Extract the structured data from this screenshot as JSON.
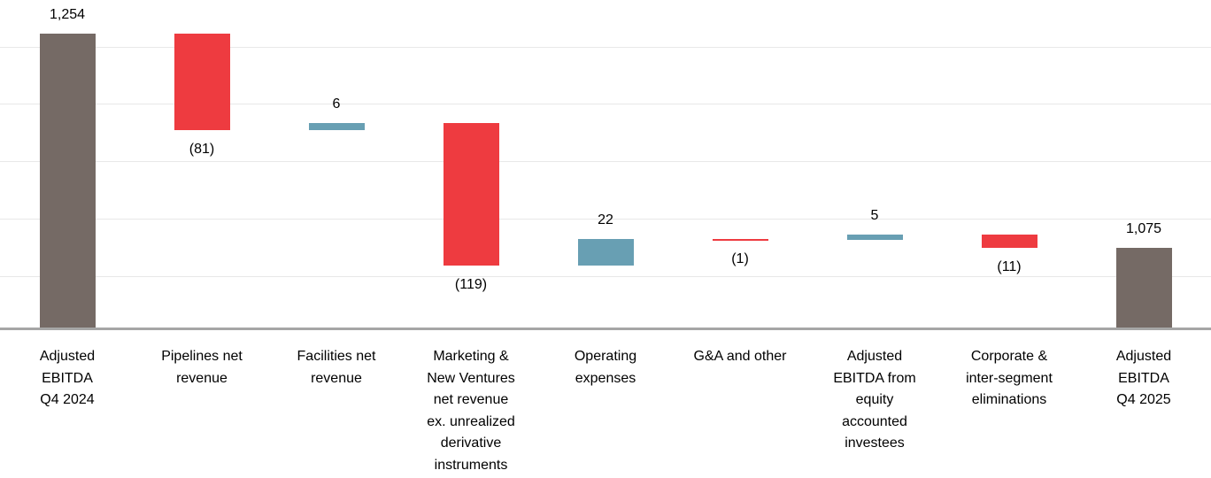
{
  "chart_data": {
    "type": "waterfall",
    "title": "",
    "legend": "none",
    "colors": {
      "total": "#756A65",
      "increase": "#689FB3",
      "decrease": "#EE3B40"
    },
    "axis": {
      "y_labels_visible": false,
      "y_truncated": true,
      "approx_y_range": [
        1008,
        1283
      ],
      "gridline_count": 5,
      "gridline_color": "#e8e8e8",
      "baseline_color": "#a6a6a6"
    },
    "steps": [
      {
        "id": "adjusted-ebitda-q4-2024",
        "kind": "total",
        "value": 1254,
        "display": "1,254",
        "label": "Adjusted EBITDA Q4 2024",
        "label_lines": [
          "Adjusted",
          "EBITDA",
          "Q4 2024"
        ]
      },
      {
        "id": "pipelines-net-revenue",
        "kind": "decrease",
        "value": -81,
        "display": "(81)",
        "label": "Pipelines net revenue",
        "label_lines": [
          "Pipelines net",
          "revenue"
        ]
      },
      {
        "id": "facilities-net-revenue",
        "kind": "increase",
        "value": 6,
        "display": "6",
        "label": "Facilities net revenue",
        "label_lines": [
          "Facilities net",
          "revenue"
        ]
      },
      {
        "id": "marketing-new-ventures-net-revenue",
        "kind": "decrease",
        "value": -119,
        "display": "(119)",
        "label": "Marketing & New Ventures net revenue ex. unrealized derivative instruments",
        "label_lines": [
          "Marketing &",
          "New Ventures",
          "net revenue",
          "ex. unrealized",
          "derivative",
          "instruments"
        ]
      },
      {
        "id": "operating-expenses",
        "kind": "increase",
        "value": 22,
        "display": "22",
        "label": "Operating expenses",
        "label_lines": [
          "Operating",
          "expenses"
        ]
      },
      {
        "id": "ga-and-other",
        "kind": "decrease",
        "value": -1,
        "display": "(1)",
        "label": "G&A and other",
        "label_lines": [
          "G&A and other"
        ]
      },
      {
        "id": "adjusted-ebitda-equity-investees",
        "kind": "increase",
        "value": 5,
        "display": "5",
        "label": "Adjusted EBITDA from equity accounted investees",
        "label_lines": [
          "Adjusted",
          "EBITDA from",
          "equity",
          "accounted",
          "investees"
        ]
      },
      {
        "id": "corporate-intersegment-eliminations",
        "kind": "decrease",
        "value": -11,
        "display": "(11)",
        "label": "Corporate & inter-segment eliminations",
        "label_lines": [
          "Corporate &",
          "inter-segment",
          "eliminations"
        ]
      },
      {
        "id": "adjusted-ebitda-q4-2025",
        "kind": "total",
        "value": 1075,
        "display": "1,075",
        "label": "Adjusted EBITDA Q4 2025",
        "label_lines": [
          "Adjusted",
          "EBITDA",
          "Q4 2025"
        ]
      }
    ]
  }
}
